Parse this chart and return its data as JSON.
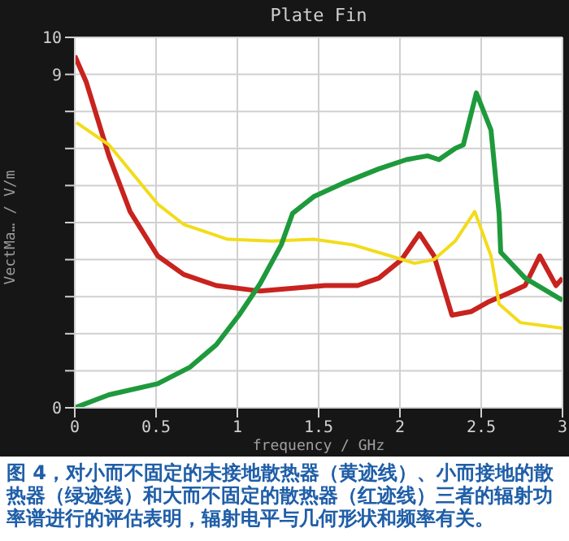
{
  "chart_data": {
    "type": "line",
    "title": "Plate Fin",
    "xlabel": "frequency / GHz",
    "ylabel": "VectMa… / V/m",
    "annotations": [
      "图 4，对小而不固定的未接地散热器（黄迹线）、小而接地的散热器（绿迹线）和大而不固定的散热器（红迹线）三者的辐射功率谱进行的评估表明，辐射电平与几何形状和频率有关。"
    ],
    "xlim": [
      0,
      3
    ],
    "xticks": [
      0,
      0.5,
      1,
      1.5,
      2,
      2.5,
      3
    ],
    "ylim": [
      0,
      10
    ],
    "yticks": [
      0,
      {
        "value": 1,
        "label": null
      },
      {
        "value": 2,
        "label": null
      },
      {
        "value": 3,
        "label": null
      },
      {
        "value": 4,
        "label": null
      },
      {
        "value": 5,
        "label": null
      },
      {
        "value": 6,
        "label": null
      },
      {
        "value": 7,
        "label": null
      },
      {
        "value": 8,
        "label": null
      },
      9,
      10
    ],
    "grid": true,
    "legend": false,
    "marker": "none",
    "line_style": "solid",
    "series": [
      {
        "color": "#c8231e",
        "x": [
          0,
          0.07,
          0.21,
          0.34,
          0.51,
          0.67,
          0.87,
          1.14,
          1.54,
          1.74,
          1.87,
          2.01,
          2.12,
          2.21,
          2.32,
          2.44,
          2.54,
          2.67,
          2.77,
          2.86,
          2.96,
          3.0
        ],
        "values": [
          9.5,
          8.8,
          6.8,
          5.3,
          4.1,
          3.6,
          3.3,
          3.15,
          3.3,
          3.3,
          3.5,
          4.0,
          4.7,
          4.1,
          2.5,
          2.6,
          2.85,
          3.1,
          3.3,
          4.1,
          3.3,
          3.5
        ]
      },
      {
        "color": "#f2dc1a",
        "x": [
          0.01,
          0.21,
          0.51,
          0.67,
          0.94,
          1.21,
          1.47,
          1.71,
          1.94,
          2.09,
          2.21,
          2.34,
          2.46,
          2.56,
          2.61,
          2.74,
          3.0
        ],
        "values": [
          7.7,
          7.1,
          5.5,
          4.95,
          4.55,
          4.5,
          4.55,
          4.4,
          4.1,
          3.9,
          4.0,
          4.5,
          5.3,
          4.1,
          2.8,
          2.3,
          2.15
        ]
      },
      {
        "color": "#1e9a3c",
        "x": [
          0,
          0.21,
          0.51,
          0.71,
          0.87,
          1.01,
          1.14,
          1.27,
          1.34,
          1.47,
          1.67,
          1.87,
          2.04,
          2.17,
          2.24,
          2.34,
          2.39,
          2.47,
          2.56,
          2.61,
          2.62,
          2.77,
          3.0
        ],
        "values": [
          0,
          0.35,
          0.65,
          1.1,
          1.7,
          2.5,
          3.35,
          4.4,
          5.25,
          5.7,
          6.1,
          6.45,
          6.7,
          6.8,
          6.7,
          7.0,
          7.1,
          8.5,
          7.5,
          5.25,
          4.2,
          3.5,
          2.9
        ]
      }
    ]
  }
}
